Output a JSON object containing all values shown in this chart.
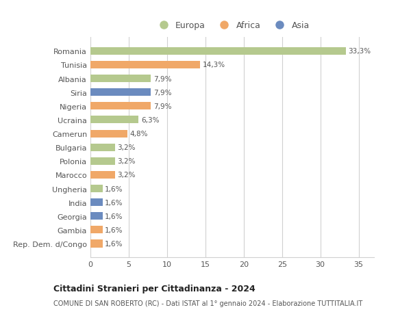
{
  "categories": [
    "Romania",
    "Tunisia",
    "Albania",
    "Siria",
    "Nigeria",
    "Ucraina",
    "Camerun",
    "Bulgaria",
    "Polonia",
    "Marocco",
    "Ungheria",
    "India",
    "Georgia",
    "Gambia",
    "Rep. Dem. d/Congo"
  ],
  "values": [
    33.3,
    14.3,
    7.9,
    7.9,
    7.9,
    6.3,
    4.8,
    3.2,
    3.2,
    3.2,
    1.6,
    1.6,
    1.6,
    1.6,
    1.6
  ],
  "labels": [
    "33,3%",
    "14,3%",
    "7,9%",
    "7,9%",
    "7,9%",
    "6,3%",
    "4,8%",
    "3,2%",
    "3,2%",
    "3,2%",
    "1,6%",
    "1,6%",
    "1,6%",
    "1,6%",
    "1,6%"
  ],
  "continents": [
    "Europa",
    "Africa",
    "Europa",
    "Asia",
    "Africa",
    "Europa",
    "Africa",
    "Europa",
    "Europa",
    "Africa",
    "Europa",
    "Asia",
    "Asia",
    "Africa",
    "Africa"
  ],
  "colors": {
    "Europa": "#b5c98e",
    "Africa": "#f0a868",
    "Asia": "#6b8bbf"
  },
  "legend_labels": [
    "Europa",
    "Africa",
    "Asia"
  ],
  "legend_colors": [
    "#b5c98e",
    "#f0a868",
    "#6b8bbf"
  ],
  "xlim": [
    0,
    37
  ],
  "xticks": [
    0,
    5,
    10,
    15,
    20,
    25,
    30,
    35
  ],
  "title": "Cittadini Stranieri per Cittadinanza - 2024",
  "subtitle": "COMUNE DI SAN ROBERTO (RC) - Dati ISTAT al 1° gennaio 2024 - Elaborazione TUTTITALIA.IT",
  "background_color": "#ffffff",
  "grid_color": "#d0d0d0",
  "bar_height": 0.55
}
